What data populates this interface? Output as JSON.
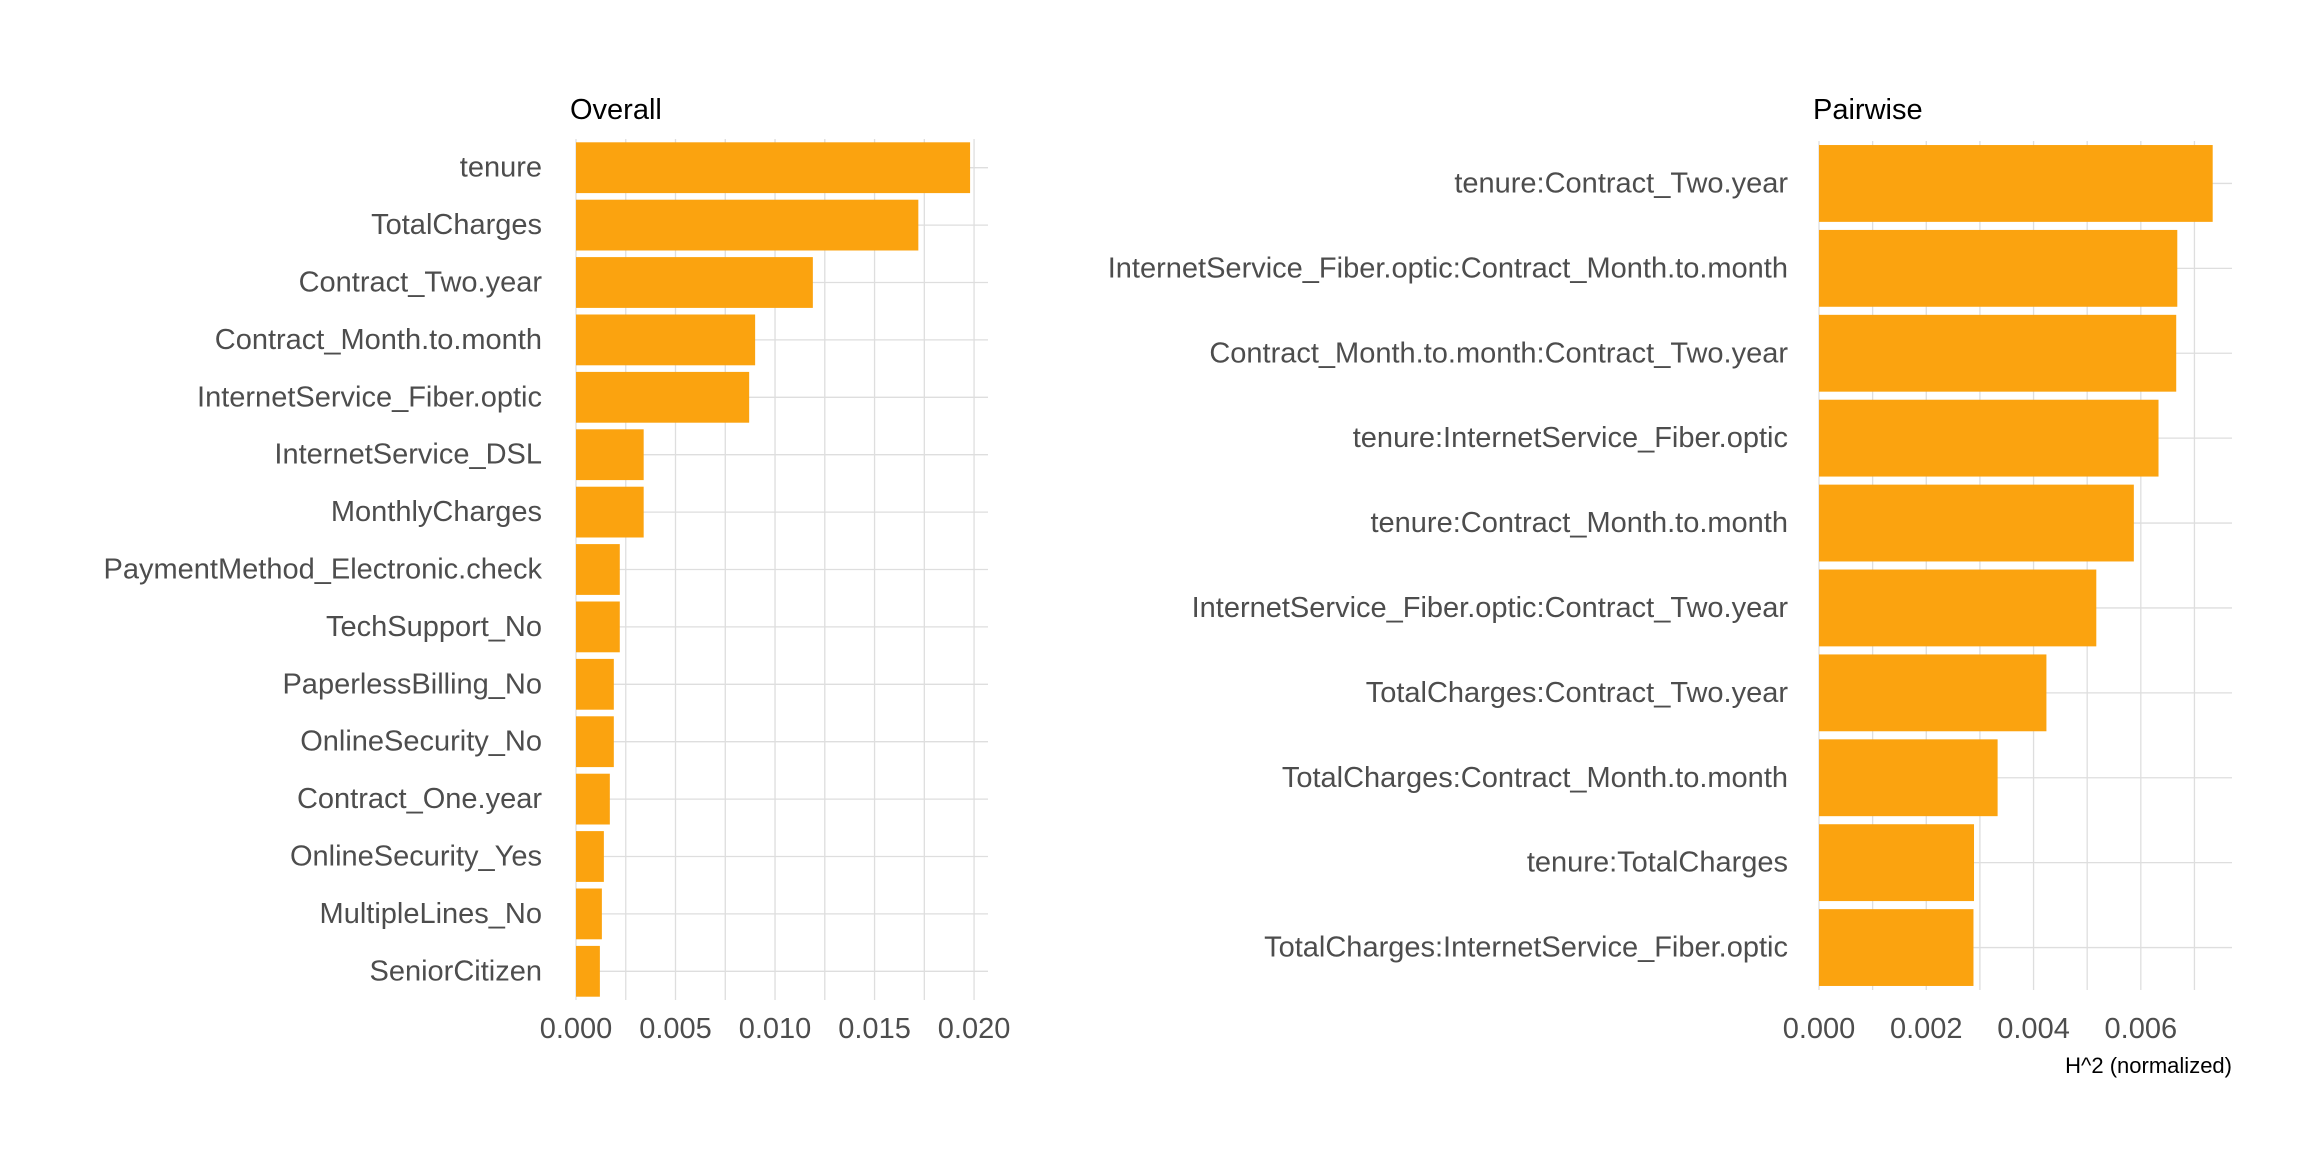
{
  "chart_data": [
    {
      "type": "bar",
      "orientation": "horizontal",
      "title": "Overall",
      "xlabel": "",
      "ylabel": "",
      "xlim": [
        0,
        0.0207
      ],
      "xticks": [
        0,
        0.005,
        0.01,
        0.015,
        0.02
      ],
      "xtick_labels": [
        "0.000",
        "0.005",
        "0.010",
        "0.015",
        "0.020"
      ],
      "grid": true,
      "bar_color": "#FBA30F",
      "categories": [
        "tenure",
        "TotalCharges",
        "Contract_Two.year",
        "Contract_Month.to.month",
        "InternetService_Fiber.optic",
        "InternetService_DSL",
        "MonthlyCharges",
        "PaymentMethod_Electronic.check",
        "TechSupport_No",
        "PaperlessBilling_No",
        "OnlineSecurity_No",
        "Contract_One.year",
        "OnlineSecurity_Yes",
        "MultipleLines_No",
        "SeniorCitizen"
      ],
      "values": [
        0.0198,
        0.0172,
        0.0119,
        0.009,
        0.0087,
        0.0034,
        0.0034,
        0.0022,
        0.0022,
        0.0019,
        0.0019,
        0.0017,
        0.0014,
        0.0013,
        0.0012
      ]
    },
    {
      "type": "bar",
      "orientation": "horizontal",
      "title": "Pairwise",
      "xlabel": "H^2 (normalized)",
      "ylabel": "",
      "xlim": [
        0,
        0.0077
      ],
      "xticks": [
        0,
        0.002,
        0.004,
        0.006
      ],
      "xtick_labels": [
        "0.000",
        "0.002",
        "0.004",
        "0.006"
      ],
      "grid": true,
      "bar_color": "#FBA30F",
      "categories": [
        "tenure:Contract_Two.year",
        "InternetService_Fiber.optic:Contract_Month.to.month",
        "Contract_Month.to.month:Contract_Two.year",
        "tenure:InternetService_Fiber.optic",
        "tenure:Contract_Month.to.month",
        "InternetService_Fiber.optic:Contract_Two.year",
        "TotalCharges:Contract_Two.year",
        "TotalCharges:Contract_Month.to.month",
        "tenure:TotalCharges",
        "TotalCharges:InternetService_Fiber.optic"
      ],
      "values": [
        0.00734,
        0.00668,
        0.00666,
        0.00633,
        0.00587,
        0.00517,
        0.00424,
        0.00333,
        0.00289,
        0.00288
      ]
    }
  ]
}
